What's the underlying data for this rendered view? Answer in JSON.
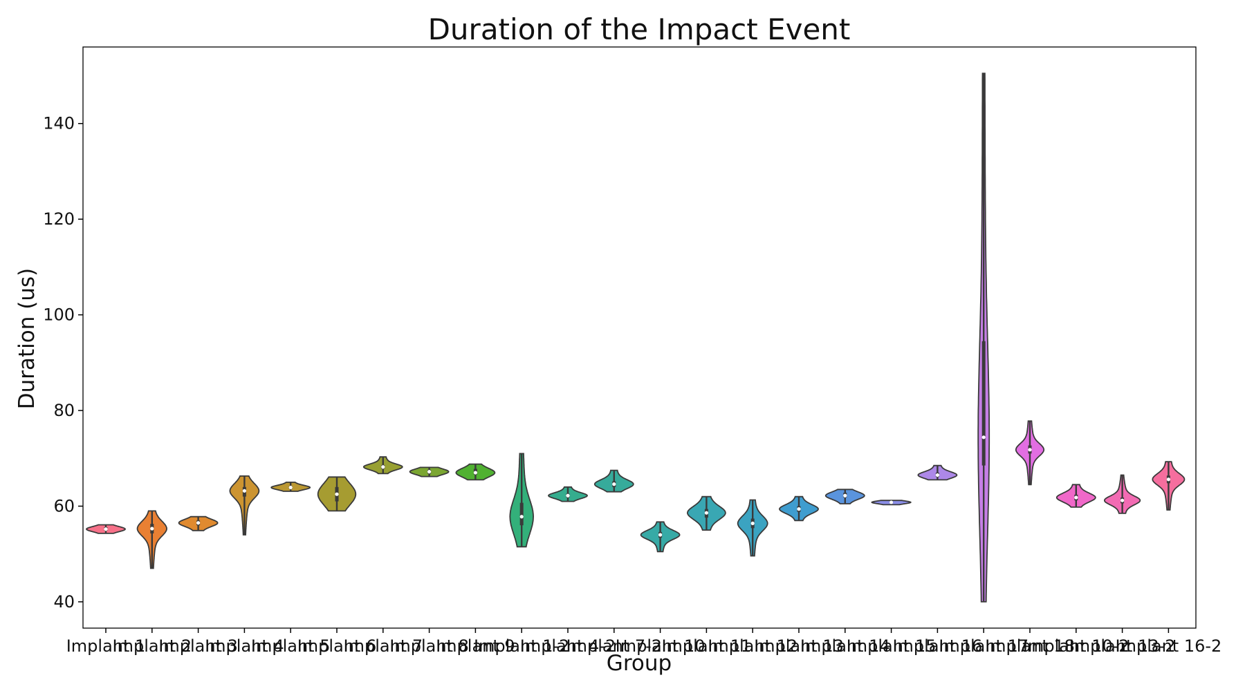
{
  "chart_data": {
    "type": "violin",
    "title": "Duration of the Impact Event",
    "xlabel": "Group",
    "ylabel": "Duration (us)",
    "ylim": [
      34.5,
      156
    ],
    "yticks": [
      40,
      60,
      80,
      100,
      120,
      140
    ],
    "grid": false,
    "legend": "none",
    "categories": [
      "Implant 1",
      "Implant 2",
      "Implant 3",
      "Implant 4",
      "Implant 5",
      "Implant 6",
      "Implant 7",
      "Implant 8",
      "Implant 9",
      "Implant 1-2",
      "Implant 4-2",
      "Implant 7-2",
      "Implant 10",
      "Implant 11",
      "Implant 12",
      "Implant 13",
      "Implant 14",
      "Implant 15",
      "Implant 16",
      "Implant 17",
      "Implant 18",
      "Implant 10-2",
      "Implant 13-2",
      "Implant 16-2"
    ],
    "series": [
      {
        "color": "#f77189",
        "min": 54.3,
        "q1": 54.9,
        "median": 55.2,
        "q3": 55.6,
        "max": 56.1
      },
      {
        "color": "#e98033",
        "min": 47.0,
        "q1": 54.3,
        "median": 55.3,
        "q3": 56.3,
        "max": 59.0
      },
      {
        "color": "#e08a2f",
        "min": 54.9,
        "q1": 56.0,
        "median": 56.5,
        "q3": 57.0,
        "max": 57.8
      },
      {
        "color": "#cc9431",
        "min": 54.0,
        "q1": 62.0,
        "median": 63.2,
        "q3": 64.0,
        "max": 66.3
      },
      {
        "color": "#bb9832",
        "min": 63.1,
        "q1": 63.6,
        "median": 63.9,
        "q3": 64.2,
        "max": 65.0
      },
      {
        "color": "#a69c31",
        "min": 59.0,
        "q1": 61.0,
        "median": 62.5,
        "q3": 64.0,
        "max": 66.1
      },
      {
        "color": "#98a032",
        "min": 66.8,
        "q1": 67.8,
        "median": 68.2,
        "q3": 68.6,
        "max": 70.3
      },
      {
        "color": "#7ba632",
        "min": 66.2,
        "q1": 66.8,
        "median": 67.2,
        "q3": 67.6,
        "max": 68.1
      },
      {
        "color": "#50b131",
        "min": 65.5,
        "q1": 66.6,
        "median": 67.0,
        "q3": 67.8,
        "max": 68.8
      },
      {
        "color": "#33b07a",
        "min": 51.5,
        "q1": 56.0,
        "median": 57.8,
        "q3": 60.7,
        "max": 71.0
      },
      {
        "color": "#35ad8e",
        "min": 61.0,
        "q1": 61.8,
        "median": 62.2,
        "q3": 62.6,
        "max": 64.0
      },
      {
        "color": "#36ab9b",
        "min": 63.0,
        "q1": 64.0,
        "median": 64.6,
        "q3": 65.2,
        "max": 67.5
      },
      {
        "color": "#37aaa6",
        "min": 50.5,
        "q1": 53.4,
        "median": 54.0,
        "q3": 54.6,
        "max": 56.7
      },
      {
        "color": "#39a7b3",
        "min": 55.0,
        "q1": 57.6,
        "median": 58.6,
        "q3": 59.4,
        "max": 62.0
      },
      {
        "color": "#3ba3c1",
        "min": 49.6,
        "q1": 55.4,
        "median": 56.4,
        "q3": 57.4,
        "max": 61.3
      },
      {
        "color": "#3f9dcf",
        "min": 57.0,
        "q1": 58.8,
        "median": 59.4,
        "q3": 60.0,
        "max": 62.0
      },
      {
        "color": "#5a94dd",
        "min": 60.5,
        "q1": 61.8,
        "median": 62.2,
        "q3": 62.8,
        "max": 63.5
      },
      {
        "color": "#8b8ee7",
        "min": 60.3,
        "q1": 60.6,
        "median": 60.8,
        "q3": 61.0,
        "max": 61.2
      },
      {
        "color": "#ad88e8",
        "min": 65.5,
        "q1": 66.1,
        "median": 66.5,
        "q3": 67.0,
        "max": 68.5
      },
      {
        "color": "#c67fe6",
        "min": 40.0,
        "q1": 68.5,
        "median": 74.4,
        "q3": 94.5,
        "max": 150.5
      },
      {
        "color": "#e26ee2",
        "min": 64.5,
        "q1": 71.0,
        "median": 71.8,
        "q3": 72.7,
        "max": 77.8
      },
      {
        "color": "#f068c9",
        "min": 59.8,
        "q1": 61.2,
        "median": 61.8,
        "q3": 62.4,
        "max": 64.5
      },
      {
        "color": "#f26bb3",
        "min": 58.5,
        "q1": 60.6,
        "median": 61.2,
        "q3": 61.8,
        "max": 66.5
      },
      {
        "color": "#f56e9e",
        "min": 59.2,
        "q1": 64.8,
        "median": 65.6,
        "q3": 66.4,
        "max": 69.3
      }
    ]
  }
}
